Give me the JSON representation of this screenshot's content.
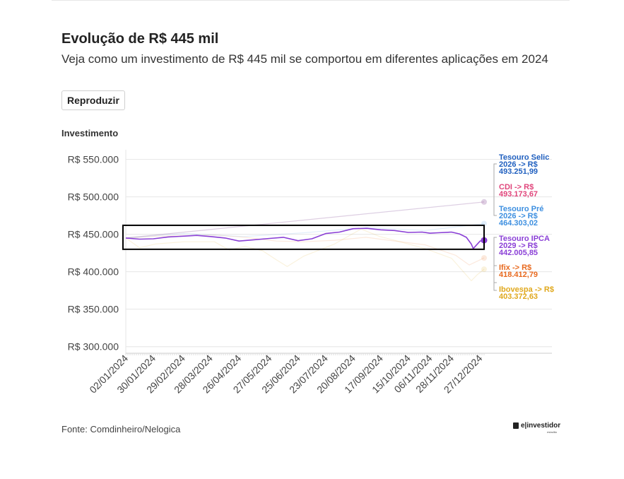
{
  "title": "Evolução de R$ 445 mil",
  "subtitle": "Veja como um investimento de R$ 445 mil se comportou em diferentes aplicações em 2024",
  "play_button_label": "Reproduzir",
  "source": "Fonte: Comdinheiro/Nelogica",
  "brand": {
    "name": "e|investidor",
    "sub": "estadão"
  },
  "colors": {
    "selic": "#1f5fbf",
    "cdi": "#e0457b",
    "pre": "#3d8fe0",
    "ipca": "#8a3fd6",
    "ifix": "#e8691e",
    "ibov": "#e0a81c",
    "grid": "#e6e6e6",
    "highlight_box": "#000000"
  },
  "chart_data": {
    "type": "line",
    "xlabel": "",
    "ylabel": "Investimento",
    "ylim": [
      295000,
      560000
    ],
    "yticks": [
      300000,
      350000,
      400000,
      450000,
      500000,
      550000
    ],
    "ytick_labels": [
      "R$ 300.000",
      "R$ 350.000",
      "R$ 400.000",
      "R$ 450.000",
      "R$ 500.000",
      "R$ 550.000"
    ],
    "x_start": "2024-01-02",
    "x_end": "2024-12-31",
    "xtick_dates": [
      "2024-01-02",
      "2024-01-30",
      "2024-02-29",
      "2024-03-28",
      "2024-04-26",
      "2024-05-27",
      "2024-06-25",
      "2024-07-23",
      "2024-08-20",
      "2024-09-17",
      "2024-10-15",
      "2024-11-06",
      "2024-11-28",
      "2024-12-27"
    ],
    "xtick_labels": [
      "02/01/2024",
      "30/01/2024",
      "29/02/2024",
      "28/03/2024",
      "26/04/2024",
      "27/05/2024",
      "25/06/2024",
      "23/07/2024",
      "20/08/2024",
      "17/09/2024",
      "15/10/2024",
      "06/11/2024",
      "28/11/2024",
      "27/12/2024"
    ],
    "grid": true,
    "highlighted_series": "Tesouro IPCA 2029",
    "highlight_box": {
      "x_range": [
        "2024-01-02",
        "2024-12-31"
      ],
      "y_range": [
        430000,
        462000
      ]
    },
    "series": [
      {
        "key": "selic",
        "name": "Tesouro Selic 2026",
        "final_label": "Tesouro Selic 2026 -> R$ 493.251,99",
        "label_lines": [
          "Tesouro Selic",
          "2026 -> R$",
          "493.251,99"
        ],
        "color": "#1f5fbf",
        "x": [
          "2024-01-02",
          "2024-12-31"
        ],
        "values": [
          445000,
          493251.99
        ]
      },
      {
        "key": "cdi",
        "name": "CDI",
        "final_label": "CDI -> R$ 493.173,67",
        "label_lines": [
          "CDI -> R$",
          "493.173,67"
        ],
        "color": "#e0457b",
        "x": [
          "2024-01-02",
          "2024-12-31"
        ],
        "values": [
          445000,
          493173.67
        ]
      },
      {
        "key": "pre",
        "name": "Tesouro Pré 2026",
        "final_label": "Tesouro Pré 2026 -> R$ 464.303,02",
        "label_lines": [
          "Tesouro Pré",
          "2026 -> R$",
          "464.303,02"
        ],
        "color": "#3d8fe0",
        "x": [
          "2024-01-02",
          "2024-03-01",
          "2024-05-01",
          "2024-07-01",
          "2024-09-02",
          "2024-11-01",
          "2024-12-31"
        ],
        "values": [
          445000,
          451000,
          447000,
          452000,
          459000,
          455000,
          464303.02
        ]
      },
      {
        "key": "ipca",
        "name": "Tesouro IPCA 2029",
        "final_label": "Tesouro IPCA 2029 -> R$ 442.005,85",
        "label_lines": [
          "Tesouro IPCA",
          "2029 -> R$",
          "442.005,85"
        ],
        "color": "#8a3fd6",
        "x": [
          "2024-01-02",
          "2024-01-16",
          "2024-01-30",
          "2024-02-14",
          "2024-02-29",
          "2024-03-14",
          "2024-03-28",
          "2024-04-12",
          "2024-04-26",
          "2024-05-10",
          "2024-05-27",
          "2024-06-10",
          "2024-06-25",
          "2024-07-09",
          "2024-07-23",
          "2024-08-06",
          "2024-08-20",
          "2024-09-03",
          "2024-09-17",
          "2024-10-01",
          "2024-10-15",
          "2024-10-29",
          "2024-11-06",
          "2024-11-14",
          "2024-11-28",
          "2024-12-06",
          "2024-12-13",
          "2024-12-18",
          "2024-12-20",
          "2024-12-27",
          "2024-12-31"
        ],
        "values": [
          445000,
          443500,
          444000,
          446500,
          447500,
          448500,
          447000,
          445000,
          441000,
          442500,
          444500,
          446000,
          441500,
          444000,
          451000,
          453000,
          457500,
          458000,
          456000,
          455000,
          452500,
          453000,
          451500,
          452000,
          453000,
          450500,
          446000,
          437000,
          431000,
          441000,
          442005.85
        ]
      },
      {
        "key": "ifix",
        "name": "Ifix",
        "final_label": "Ifix -> R$ 418.412,79",
        "label_lines": [
          "Ifix -> R$",
          "418.412,79"
        ],
        "color": "#e8691e",
        "x": [
          "2024-01-02",
          "2024-02-01",
          "2024-03-01",
          "2024-04-01",
          "2024-05-02",
          "2024-06-03",
          "2024-07-01",
          "2024-08-01",
          "2024-09-02",
          "2024-10-01",
          "2024-11-01",
          "2024-12-02",
          "2024-12-16",
          "2024-12-31"
        ],
        "values": [
          445000,
          447500,
          448000,
          449000,
          446000,
          441000,
          440000,
          442000,
          446000,
          441000,
          436000,
          422000,
          409000,
          418412.79
        ]
      },
      {
        "key": "ibov",
        "name": "Ibovespa",
        "final_label": "Ibovespa -> R$ 403.372,63",
        "label_lines": [
          "Ibovespa -> R$",
          "403.372,63"
        ],
        "color": "#e0a81c",
        "x": [
          "2024-01-02",
          "2024-01-16",
          "2024-02-01",
          "2024-03-01",
          "2024-04-01",
          "2024-04-16",
          "2024-05-02",
          "2024-05-20",
          "2024-06-03",
          "2024-06-14",
          "2024-07-01",
          "2024-08-01",
          "2024-08-28",
          "2024-09-16",
          "2024-10-01",
          "2024-11-01",
          "2024-11-28",
          "2024-12-18",
          "2024-12-24",
          "2024-12-31"
        ],
        "values": [
          445000,
          432000,
          437000,
          440000,
          440000,
          429000,
          434000,
          428000,
          416000,
          407000,
          421000,
          437000,
          457000,
          447000,
          442000,
          431000,
          418000,
          388000,
          396000,
          403372.63
        ]
      }
    ]
  }
}
